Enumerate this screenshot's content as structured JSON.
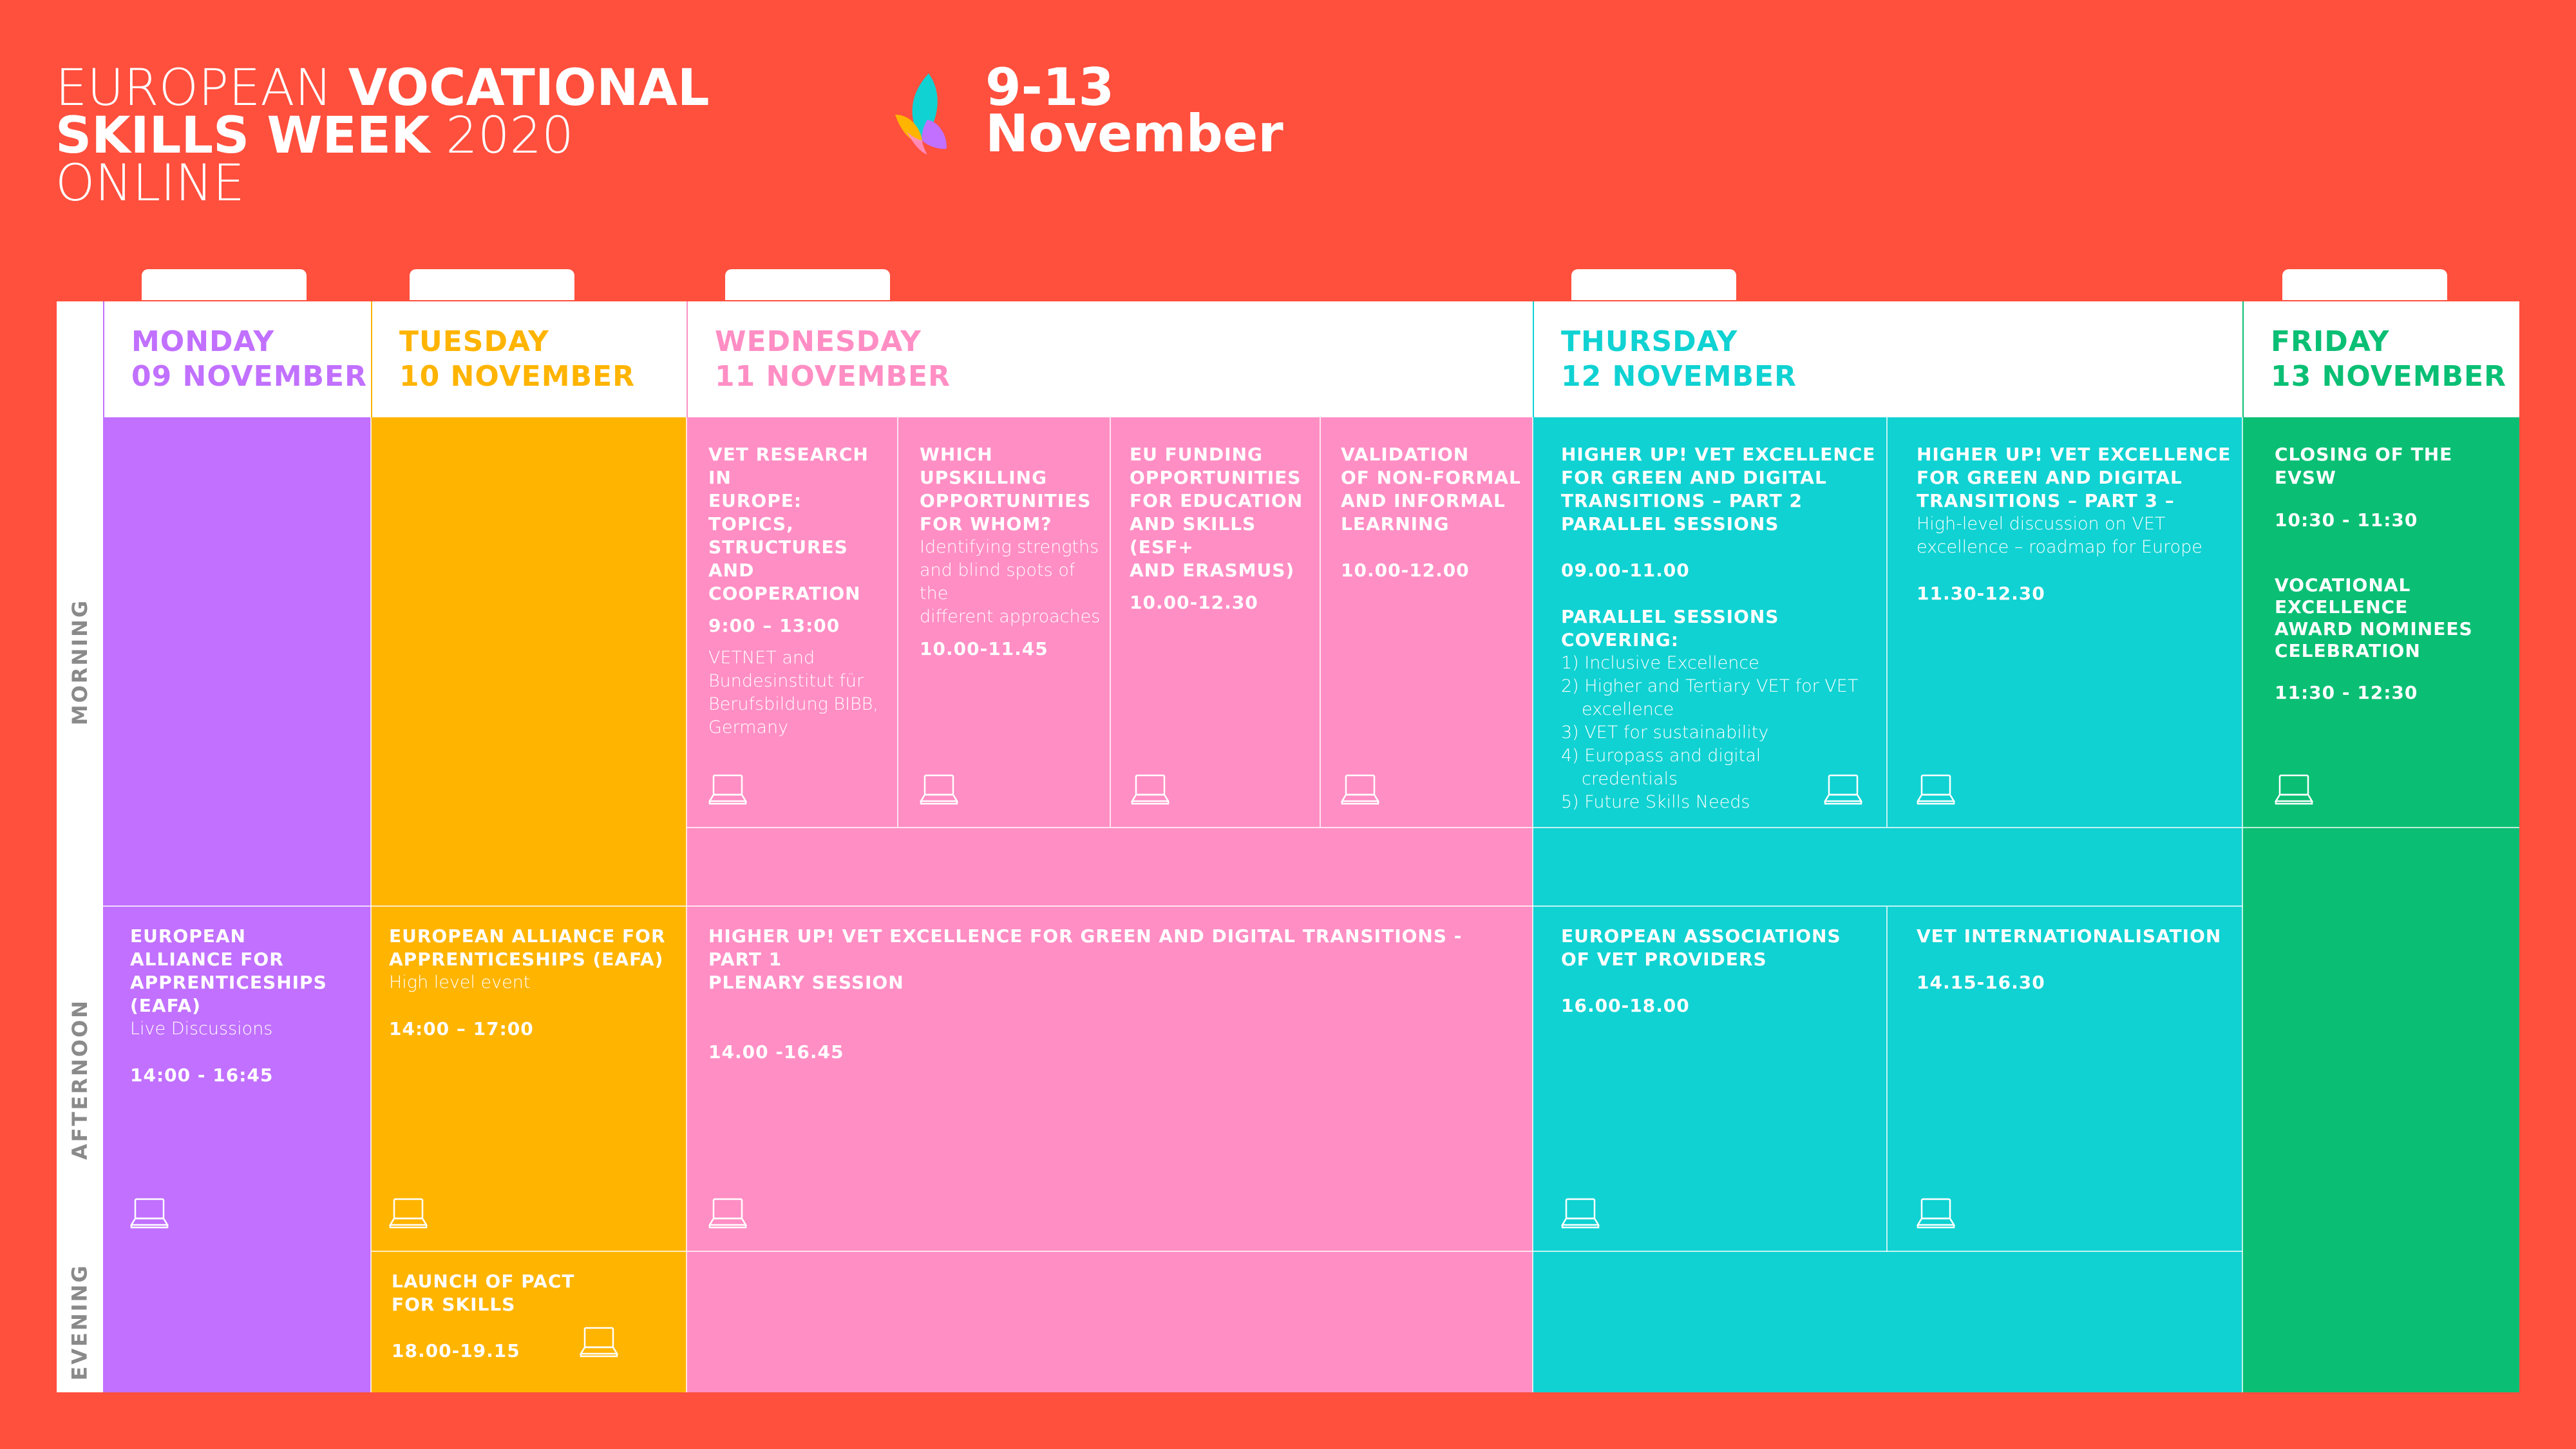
{
  "header": {
    "title_line1_light": "EUROPEAN ",
    "title_line1_bold": "VOCATIONAL",
    "title_line2_bold": "SKILLS WEEK",
    "title_line2_light": " 2020",
    "title_line3": "ONLINE",
    "dates_line1": "9-13",
    "dates_line2": "November"
  },
  "colors": {
    "background": "#ff4f3d",
    "monday": "#c170ff",
    "tuesday": "#ffb400",
    "wednesday": "#ff8ec4",
    "thursday": "#10d2d2",
    "friday": "#0abf74",
    "row_label": "#8a8a8a"
  },
  "rows": {
    "morning": "MORNING",
    "afternoon": "AFTERNOON",
    "evening": "EVENING"
  },
  "days": {
    "monday": {
      "line1": "MONDAY",
      "line2": "09 NOVEMBER"
    },
    "tuesday": {
      "line1": "TUESDAY",
      "line2": "10 NOVEMBER"
    },
    "wednesday": {
      "line1": "WEDNESDAY",
      "line2": "11 NOVEMBER"
    },
    "thursday": {
      "line1": "THURSDAY",
      "line2": "12 NOVEMBER"
    },
    "friday": {
      "line1": "FRIDAY",
      "line2": "13 NOVEMBER"
    }
  },
  "events": {
    "wed_m1": {
      "title": [
        "VET RESEARCH IN",
        "EUROPE:",
        "TOPICS,",
        "STRUCTURES AND",
        "COOPERATION"
      ],
      "time": "9:00 – 13:00",
      "desc": [
        "VETNET and",
        "Bundesinstitut für",
        "Berufsbildung BIBB,",
        "Germany"
      ]
    },
    "wed_m2": {
      "title": [
        "WHICH",
        "UPSKILLING",
        "OPPORTUNITIES",
        "FOR WHOM?"
      ],
      "desc": [
        "Identifying strengths",
        "and blind spots of the",
        "different approaches"
      ],
      "time": "10.00-11.45"
    },
    "wed_m3": {
      "title": [
        "EU FUNDING",
        "OPPORTUNITIES",
        "FOR EDUCATION",
        "AND SKILLS (ESF+",
        "AND ERASMUS)"
      ],
      "time": "10.00-12.30"
    },
    "wed_m4": {
      "title": [
        "VALIDATION",
        "OF NON-FORMAL",
        "AND INFORMAL",
        "LEARNING"
      ],
      "time": "10.00-12.00"
    },
    "thu_m1": {
      "title": [
        "HIGHER UP! VET EXCELLENCE",
        "FOR GREEN AND DIGITAL",
        "TRANSITIONS – PART 2",
        "PARALLEL SESSIONS"
      ],
      "time": "09.00-11.00",
      "covering": "PARALLEL SESSIONS COVERING:",
      "items": [
        "1) Inclusive Excellence",
        "2) Higher and Tertiary VET for VET",
        "excellence",
        "3) VET for sustainability",
        "4) Europass and digital",
        "credentials",
        "5) Future Skills Needs"
      ]
    },
    "thu_m2": {
      "title": [
        "HIGHER UP! VET EXCELLENCE",
        "FOR GREEN AND DIGITAL",
        "TRANSITIONS – PART 3 –"
      ],
      "desc": [
        "High-level discussion on VET",
        "excellence – roadmap for Europe"
      ],
      "time": "11.30-12.30"
    },
    "fri_1": {
      "title": "CLOSING OF THE EVSW",
      "time": "10:30 - 11:30"
    },
    "fri_2": {
      "title": [
        "VOCATIONAL",
        "EXCELLENCE",
        "AWARD NOMINEES",
        "CELEBRATION"
      ],
      "time": "11:30 - 12:30"
    },
    "mon_a": {
      "title": [
        "EUROPEAN",
        "ALLIANCE FOR",
        "APPRENTICESHIPS",
        "(EAFA)"
      ],
      "desc": "Live Discussions",
      "time": "14:00 - 16:45"
    },
    "tue_a": {
      "title": [
        "EUROPEAN ALLIANCE FOR",
        "APPRENTICESHIPS (EAFA)"
      ],
      "desc": "High level event",
      "time": "14:00 – 17:00"
    },
    "wed_a": {
      "title": [
        "HIGHER UP! VET EXCELLENCE FOR GREEN AND DIGITAL TRANSITIONS - PART 1",
        "PLENARY SESSION"
      ],
      "time": "14.00 -16.45"
    },
    "thu_a1": {
      "title": "EUROPEAN ASSOCIATIONS OF VET PROVIDERS",
      "time": "16.00-18.00"
    },
    "thu_a2": {
      "title": "VET INTERNATIONALISATION",
      "time": "14.15-16.30"
    },
    "tue_e": {
      "title": [
        "LAUNCH OF PACT",
        "FOR SKILLS"
      ],
      "time": "18.00-19.15"
    }
  },
  "icons": {
    "online": "laptop-icon",
    "logo": "evsw-leaf-logo"
  }
}
